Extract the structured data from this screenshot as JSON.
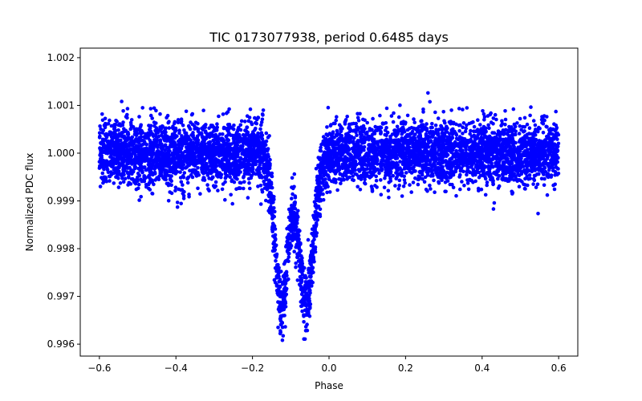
{
  "chart_data": {
    "type": "scatter",
    "title": "TIC 0173077938, period 0.6485 days",
    "xlabel": "Phase",
    "ylabel": "Normalized PDC flux",
    "xlim": [
      -0.65,
      0.65
    ],
    "ylim": [
      0.99575,
      1.0022
    ],
    "xticks": [
      -0.6,
      -0.4,
      -0.2,
      0.0,
      0.2,
      0.4,
      0.6
    ],
    "xtick_labels": [
      "−0.6",
      "−0.4",
      "−0.2",
      "0.0",
      "0.2",
      "0.4",
      "0.6"
    ],
    "yticks": [
      0.996,
      0.997,
      0.998,
      0.999,
      1.0,
      1.001,
      1.002
    ],
    "ytick_labels": [
      "0.996",
      "0.997",
      "0.998",
      "0.999",
      "1.000",
      "1.001",
      "1.002"
    ],
    "grid": false,
    "marker_color": "#0000ff",
    "series": [
      {
        "phase_range": [
          -0.6,
          0.6
        ],
        "baseline_flux": 1.0,
        "scatter_sigma": 0.00033,
        "dips": [
          {
            "center_phase": -0.125,
            "width": 0.017,
            "depth": 0.0032
          },
          {
            "center_phase": -0.06,
            "width": 0.02,
            "depth": 0.0031
          }
        ],
        "min_flux": 0.99577
      }
    ]
  }
}
